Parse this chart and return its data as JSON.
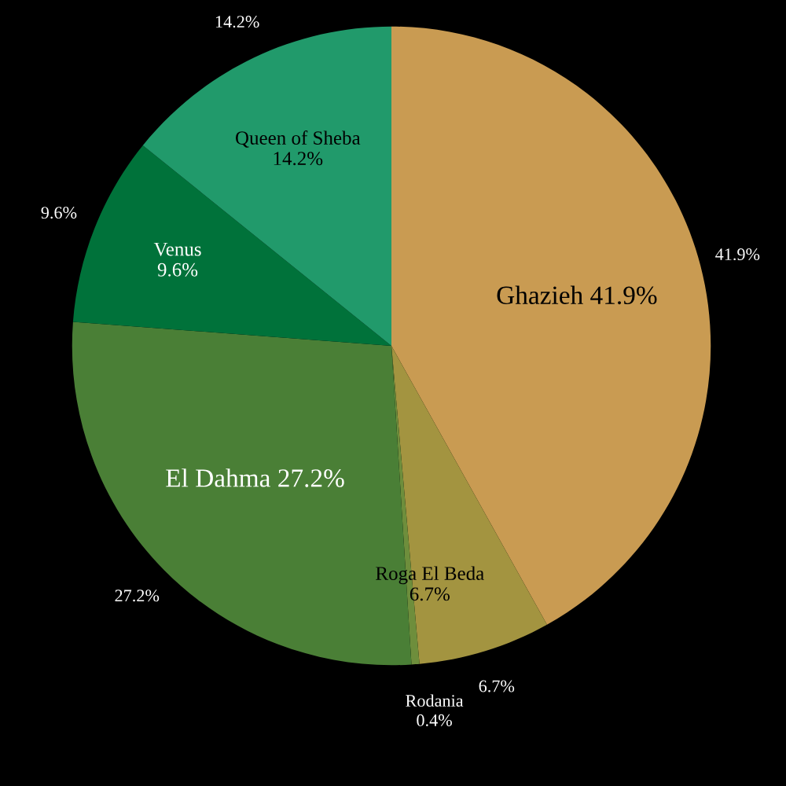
{
  "chart_data": {
    "type": "pie",
    "categories": [
      "Ghazieh",
      "Roga El Beda",
      "Rodania",
      "El Dahma",
      "Venus",
      "Queen of Sheba"
    ],
    "values": [
      41.9,
      6.7,
      0.4,
      27.2,
      9.6,
      14.2
    ],
    "colors": [
      "#c99b52",
      "#a39440",
      "#6e8e3c",
      "#4a7f36",
      "#00723a",
      "#219a6b"
    ],
    "value_labels": [
      "41.9%",
      "6.7%",
      "0.4%",
      "27.2%",
      "9.6%",
      "14.2%"
    ],
    "legend": false
  }
}
